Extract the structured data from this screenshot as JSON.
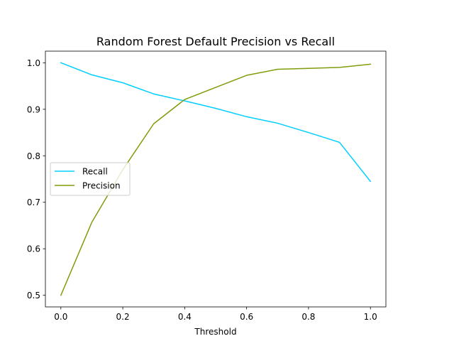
{
  "chart_data": {
    "type": "line",
    "title": "Random Forest Default Precision vs Recall",
    "xlabel": "Threshold",
    "ylabel": "",
    "xlim": [
      -0.05,
      1.05
    ],
    "ylim": [
      0.475,
      1.025
    ],
    "x_ticks": [
      0.0,
      0.2,
      0.4,
      0.6,
      0.8,
      1.0
    ],
    "x_tick_labels": [
      "0.0",
      "0.2",
      "0.4",
      "0.6",
      "0.8",
      "1.0"
    ],
    "y_ticks": [
      0.5,
      0.6,
      0.7,
      0.8,
      0.9,
      1.0
    ],
    "y_tick_labels": [
      "0.5",
      "0.6",
      "0.7",
      "0.8",
      "0.9",
      "1.0"
    ],
    "grid": false,
    "legend_position": "center-left",
    "x": [
      0.0,
      0.1,
      0.2,
      0.3,
      0.4,
      0.5,
      0.6,
      0.7,
      0.8,
      0.9,
      1.0
    ],
    "series": [
      {
        "name": "Recall",
        "color": "#00cfff",
        "values": [
          1.0,
          0.974,
          0.957,
          0.933,
          0.918,
          0.902,
          0.884,
          0.87,
          0.85,
          0.829,
          0.745
        ]
      },
      {
        "name": "Precision",
        "color": "#7f9c0a",
        "values": [
          0.5,
          0.657,
          0.77,
          0.869,
          0.921,
          0.947,
          0.973,
          0.986,
          0.988,
          0.99,
          0.997
        ]
      }
    ]
  }
}
